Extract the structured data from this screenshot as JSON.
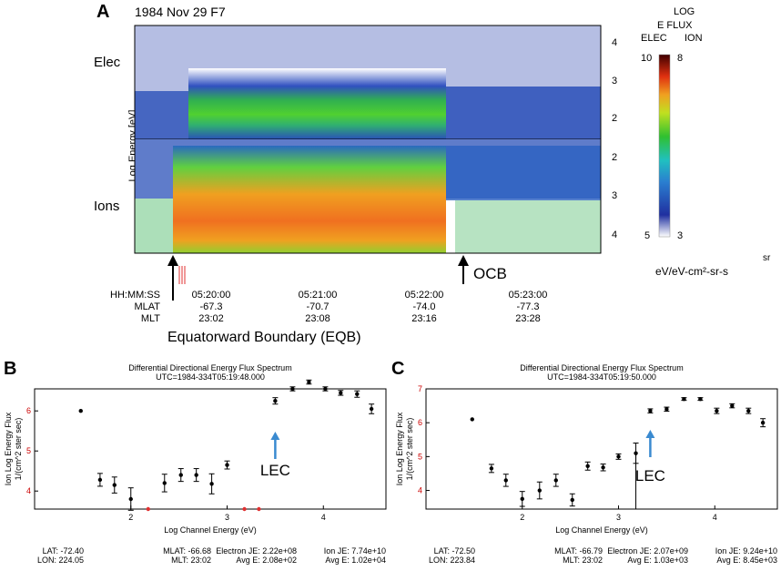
{
  "panel_a": {
    "letter": "A",
    "title": "1984 Nov 29 F7",
    "elec_label": "Elec",
    "ions_label": "Ions",
    "ylabel": "Log Energy [eV]",
    "right_ticks_top": [
      "4",
      "3",
      "2"
    ],
    "right_ticks_bottom": [
      "2",
      "3",
      "4"
    ],
    "colorbar": {
      "title_line1": "LOG",
      "title_line2": "E FLUX",
      "elec_label": "ELEC",
      "ion_label": "ION",
      "elec_max": "10",
      "ion_max": "8",
      "elec_min": "5",
      "ion_min": "3",
      "sr_label": "sr",
      "units": "eV/eV-cm²-sr-s"
    },
    "ocb_label": "OCB",
    "eqb_label": "Equatorward Boundary (EQB)",
    "axis_rows": [
      "HH:MM:SS",
      "MLAT",
      "MLT"
    ],
    "time_columns": [
      {
        "time": "05:20:00",
        "mlat": "-67.3",
        "mlt": "23:02"
      },
      {
        "time": "05:21:00",
        "mlat": "-70.7",
        "mlt": "23:08"
      },
      {
        "time": "05:22:00",
        "mlat": "-74.0",
        "mlt": "23:16"
      },
      {
        "time": "05:23:00",
        "mlat": "-77.3",
        "mlt": "23:28"
      }
    ]
  },
  "colors": {
    "spectrogram_high": "#e04a10",
    "spectrogram_mid": "#3cc23c",
    "spectrogram_low": "#2046b8",
    "arrow_blue": "#3a8ad0",
    "red_tick": "#e03030"
  },
  "chart_data": [
    {
      "type": "scatter",
      "panel": "B",
      "title": "Differential Directional Energy Flux Spectrum",
      "subtitle": "UTC=1984-334T05:19:48.000",
      "xlabel": "Log Channel Energy (eV)",
      "ylabel_line1": "Ion Log Energy Flux",
      "ylabel_line2": "1/(cm^2 ster sec)",
      "xlim": [
        1.0,
        4.65
      ],
      "ylim": [
        3.55,
        6.55
      ],
      "xticks": [
        "2",
        "3",
        "4"
      ],
      "yticks": [
        "4",
        "5",
        "6"
      ],
      "annotation": "LEC",
      "annotation_x": 3.5,
      "points": [
        {
          "x": 1.48,
          "y": 6.0,
          "err": 0.0
        },
        {
          "x": 1.68,
          "y": 4.28,
          "err": 0.16
        },
        {
          "x": 1.83,
          "y": 4.15,
          "err": 0.2
        },
        {
          "x": 2.0,
          "y": 3.8,
          "err": 0.28
        },
        {
          "x": 2.35,
          "y": 4.2,
          "err": 0.22
        },
        {
          "x": 2.52,
          "y": 4.4,
          "err": 0.16
        },
        {
          "x": 2.68,
          "y": 4.4,
          "err": 0.16
        },
        {
          "x": 2.84,
          "y": 4.18,
          "err": 0.25
        },
        {
          "x": 3.0,
          "y": 4.65,
          "err": 0.1
        },
        {
          "x": 3.5,
          "y": 6.25,
          "err": 0.08
        },
        {
          "x": 3.68,
          "y": 6.55,
          "err": 0.05
        },
        {
          "x": 3.85,
          "y": 6.72,
          "err": 0.05
        },
        {
          "x": 4.02,
          "y": 6.55,
          "err": 0.05
        },
        {
          "x": 4.18,
          "y": 6.45,
          "err": 0.06
        },
        {
          "x": 4.35,
          "y": 6.42,
          "err": 0.08
        },
        {
          "x": 4.5,
          "y": 6.05,
          "err": 0.12
        }
      ],
      "red_markers_x": [
        2.18,
        3.18,
        3.33
      ],
      "footer": {
        "lat": "LAT: -72.40",
        "lon": "LON: 224.05",
        "mlat": "MLAT: -66.68",
        "mlt": "MLT: 23:02",
        "electron_je": "Electron JE: 2.22e+08",
        "electron_avg": "Avg E: 2.08e+02",
        "ion_je": "Ion JE: 7.74e+10",
        "ion_avg": "Avg E: 1.02e+04"
      }
    },
    {
      "type": "scatter",
      "panel": "C",
      "title": "Differential Directional Energy Flux Spectrum",
      "subtitle": "UTC=1984-334T05:19:50.000",
      "xlabel": "Log Channel Energy (eV)",
      "ylabel_line1": "Ion Log Energy Flux",
      "ylabel_line2": "1/(cm^2 ster sec)",
      "xlim": [
        1.0,
        4.65
      ],
      "ylim": [
        3.45,
        7.0
      ],
      "xticks": [
        "2",
        "3",
        "4"
      ],
      "yticks": [
        "4",
        "5",
        "6",
        "7"
      ],
      "annotation": "LEC",
      "annotation_x": 3.33,
      "points": [
        {
          "x": 1.48,
          "y": 6.1,
          "err": 0.0
        },
        {
          "x": 1.68,
          "y": 4.65,
          "err": 0.12
        },
        {
          "x": 1.83,
          "y": 4.3,
          "err": 0.18
        },
        {
          "x": 2.0,
          "y": 3.75,
          "err": 0.22
        },
        {
          "x": 2.18,
          "y": 4.0,
          "err": 0.25
        },
        {
          "x": 2.35,
          "y": 4.3,
          "err": 0.18
        },
        {
          "x": 2.52,
          "y": 3.72,
          "err": 0.18
        },
        {
          "x": 2.68,
          "y": 4.72,
          "err": 0.12
        },
        {
          "x": 2.84,
          "y": 4.68,
          "err": 0.1
        },
        {
          "x": 3.0,
          "y": 5.0,
          "err": 0.08
        },
        {
          "x": 3.18,
          "y": 5.1,
          "err": 0.3
        },
        {
          "x": 3.33,
          "y": 6.35,
          "err": 0.06
        },
        {
          "x": 3.5,
          "y": 6.4,
          "err": 0.06
        },
        {
          "x": 3.68,
          "y": 6.7,
          "err": 0.04
        },
        {
          "x": 3.85,
          "y": 6.7,
          "err": 0.04
        },
        {
          "x": 4.02,
          "y": 6.35,
          "err": 0.08
        },
        {
          "x": 4.18,
          "y": 6.5,
          "err": 0.06
        },
        {
          "x": 4.35,
          "y": 6.35,
          "err": 0.08
        },
        {
          "x": 4.5,
          "y": 6.0,
          "err": 0.12
        }
      ],
      "footer": {
        "lat": "LAT: -72.50",
        "lon": "LON: 223.84",
        "mlat": "MLAT: -66.79",
        "mlt": "MLT: 23:02",
        "electron_je": "Electron JE: 2.07e+09",
        "electron_avg": "Avg E: 1.03e+03",
        "ion_je": "Ion JE: 9.24e+10",
        "ion_avg": "Avg E: 8.45e+03"
      }
    }
  ],
  "panel_b": {
    "letter": "B"
  },
  "panel_c": {
    "letter": "C"
  }
}
